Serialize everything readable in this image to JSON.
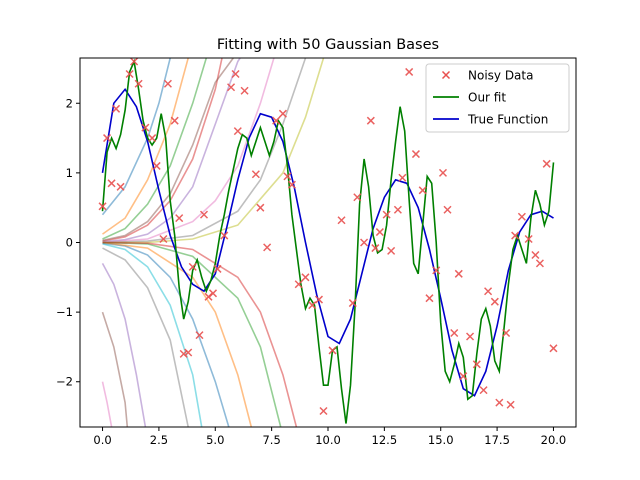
{
  "chart_data": {
    "type": "line",
    "title": "Fitting with 50 Gaussian Bases",
    "xlabel": "",
    "ylabel": "",
    "xlim": [
      -1.0,
      21.0
    ],
    "ylim": [
      -2.65,
      2.65
    ],
    "xticks": [
      0.0,
      2.5,
      5.0,
      7.5,
      10.0,
      12.5,
      15.0,
      17.5,
      20.0
    ],
    "xtick_labels": [
      "0.0",
      "2.5",
      "5.0",
      "7.5",
      "10.0",
      "12.5",
      "15.0",
      "17.5",
      "20.0"
    ],
    "yticks": [
      -2,
      -1,
      0,
      1,
      2
    ],
    "ytick_labels": [
      "−2",
      "−1",
      "0",
      "1",
      "2"
    ],
    "grid": false,
    "legend": {
      "position": "top-right",
      "entries": [
        {
          "label": "Noisy Data",
          "color": "#e8504f",
          "marker": "x"
        },
        {
          "label": "Our fit",
          "color": "#008000",
          "marker": "line"
        },
        {
          "label": "True Function",
          "color": "#0000cc",
          "marker": "line"
        }
      ]
    },
    "colors": {
      "noisy": "#e8504f",
      "fit": "#008000",
      "true": "#0000cc",
      "basis_palette": [
        "#1f77b4",
        "#ff7f0e",
        "#2ca02c",
        "#d62728",
        "#9467bd",
        "#8c564b",
        "#e377c2",
        "#7f7f7f",
        "#bcbd22",
        "#17becf"
      ]
    },
    "true_function": {
      "x": [
        0.0,
        0.5,
        1.0,
        1.5,
        2.0,
        2.5,
        3.0,
        3.5,
        4.0,
        4.5,
        5.0,
        5.5,
        6.0,
        6.5,
        7.0,
        7.5,
        8.0,
        8.5,
        9.0,
        9.5,
        10.0,
        10.5,
        11.0,
        11.5,
        12.0,
        12.5,
        13.0,
        13.5,
        14.0,
        14.5,
        15.0,
        15.5,
        16.0,
        16.5,
        17.0,
        17.5,
        18.0,
        18.5,
        19.0,
        19.5,
        20.0
      ],
      "y": [
        1.0,
        2.0,
        2.2,
        1.95,
        1.45,
        0.75,
        0.1,
        -0.35,
        -0.6,
        -0.7,
        -0.45,
        0.2,
        0.9,
        1.5,
        1.85,
        1.8,
        1.45,
        0.8,
        0.0,
        -0.75,
        -1.35,
        -1.45,
        -1.1,
        -0.45,
        0.2,
        0.65,
        0.9,
        0.85,
        0.5,
        -0.1,
        -0.8,
        -1.55,
        -2.1,
        -2.2,
        -1.85,
        -1.2,
        -0.4,
        0.15,
        0.4,
        0.45,
        0.35
      ]
    },
    "our_fit": {
      "x": [
        0.0,
        0.2,
        0.4,
        0.6,
        0.8,
        1.0,
        1.2,
        1.4,
        1.6,
        1.8,
        2.0,
        2.2,
        2.4,
        2.6,
        2.8,
        3.0,
        3.2,
        3.4,
        3.6,
        3.8,
        4.0,
        4.2,
        4.4,
        4.6,
        4.8,
        5.0,
        5.2,
        5.4,
        5.6,
        5.8,
        6.0,
        6.2,
        6.4,
        6.6,
        6.8,
        7.0,
        7.2,
        7.4,
        7.6,
        7.8,
        8.0,
        8.2,
        8.4,
        8.6,
        8.8,
        9.0,
        9.2,
        9.4,
        9.6,
        9.8,
        10.0,
        10.2,
        10.4,
        10.6,
        10.8,
        11.0,
        11.2,
        11.4,
        11.6,
        11.8,
        12.0,
        12.2,
        12.4,
        12.6,
        12.8,
        13.0,
        13.2,
        13.4,
        13.6,
        13.8,
        14.0,
        14.2,
        14.4,
        14.6,
        14.8,
        15.0,
        15.2,
        15.4,
        15.6,
        15.8,
        16.0,
        16.2,
        16.4,
        16.6,
        16.8,
        17.0,
        17.2,
        17.4,
        17.6,
        17.8,
        18.0,
        18.2,
        18.4,
        18.6,
        18.8,
        19.0,
        19.2,
        19.4,
        19.6,
        19.8,
        20.0
      ],
      "y": [
        0.45,
        1.3,
        1.5,
        1.35,
        1.55,
        1.9,
        2.45,
        2.6,
        2.2,
        1.75,
        1.5,
        1.4,
        1.5,
        1.85,
        1.5,
        0.6,
        0.1,
        -0.65,
        -1.1,
        -0.85,
        -0.4,
        -0.25,
        -0.5,
        -0.7,
        -0.55,
        -0.3,
        0.1,
        0.4,
        0.75,
        1.05,
        1.35,
        1.55,
        1.5,
        1.25,
        1.45,
        1.65,
        1.45,
        1.25,
        1.45,
        1.75,
        1.65,
        1.1,
        0.4,
        -0.1,
        -0.6,
        -0.95,
        -0.8,
        -0.9,
        -1.5,
        -2.05,
        -2.05,
        -1.55,
        -1.5,
        -2.1,
        -2.6,
        -2.05,
        -0.9,
        0.55,
        1.2,
        0.8,
        0.1,
        -0.15,
        -0.1,
        0.25,
        0.9,
        1.45,
        1.95,
        1.6,
        0.6,
        -0.3,
        -0.45,
        0.25,
        0.95,
        0.85,
        0.0,
        -1.15,
        -1.85,
        -2.0,
        -1.75,
        -1.45,
        -1.65,
        -2.25,
        -2.2,
        -1.6,
        -1.1,
        -0.95,
        -1.2,
        -1.7,
        -1.85,
        -1.25,
        -0.6,
        -0.1,
        0.1,
        -0.1,
        -0.3,
        0.35,
        0.75,
        0.55,
        0.25,
        0.45,
        1.15
      ]
    },
    "noisy_data": {
      "x": [
        0.0,
        0.2,
        0.4,
        0.6,
        0.8,
        1.2,
        1.4,
        1.6,
        1.9,
        2.2,
        2.4,
        2.7,
        2.9,
        3.2,
        3.4,
        3.6,
        3.8,
        4.0,
        4.3,
        4.5,
        4.7,
        4.9,
        5.1,
        5.4,
        5.7,
        5.9,
        6.0,
        6.3,
        6.8,
        7.0,
        7.3,
        7.7,
        8.0,
        8.2,
        8.4,
        8.7,
        9.0,
        9.3,
        9.6,
        9.8,
        10.2,
        10.6,
        11.1,
        11.3,
        11.6,
        11.9,
        12.1,
        12.3,
        12.6,
        12.8,
        13.1,
        13.3,
        13.6,
        13.9,
        14.2,
        14.5,
        14.8,
        15.1,
        15.3,
        15.6,
        15.8,
        16.0,
        16.3,
        16.6,
        16.9,
        17.1,
        17.4,
        17.6,
        17.9,
        18.1,
        18.3,
        18.6,
        18.9,
        19.2,
        19.4,
        19.7,
        20.0
      ],
      "y": [
        0.52,
        1.5,
        0.85,
        1.92,
        0.8,
        2.42,
        2.6,
        2.28,
        1.65,
        1.5,
        1.1,
        0.05,
        2.28,
        1.75,
        0.35,
        -1.6,
        -1.58,
        -0.35,
        -1.33,
        0.4,
        -0.78,
        -0.73,
        -0.38,
        0.1,
        2.23,
        2.42,
        1.6,
        2.18,
        0.98,
        0.5,
        -0.07,
        1.75,
        1.85,
        0.95,
        0.83,
        -0.6,
        -0.5,
        -0.9,
        -0.82,
        -2.42,
        -1.55,
        0.32,
        -0.87,
        0.65,
        0.0,
        1.75,
        -0.08,
        0.15,
        0.4,
        -0.12,
        0.47,
        0.93,
        2.45,
        1.27,
        0.75,
        -0.8,
        -0.4,
        1.0,
        0.47,
        -1.3,
        -0.45,
        -1.92,
        -1.35,
        -1.75,
        -2.12,
        -0.7,
        -0.85,
        -2.3,
        -1.3,
        -2.33,
        0.1,
        0.37,
        0.05,
        -0.18,
        -0.3,
        1.13,
        -1.52
      ]
    },
    "gaussian_bases": {
      "count": 50,
      "visible_basis_curves": [
        {
          "x": [
            0,
            1,
            2,
            2.5,
            3.0
          ],
          "y": [
            0.4,
            0.8,
            1.5,
            2.0,
            2.65
          ]
        },
        {
          "x": [
            0,
            1,
            2,
            3,
            3.8
          ],
          "y": [
            0.12,
            0.35,
            0.9,
            1.7,
            2.65
          ]
        },
        {
          "x": [
            0,
            1,
            2,
            3,
            4,
            4.6
          ],
          "y": [
            0.05,
            0.2,
            0.55,
            1.1,
            2.0,
            2.65
          ]
        },
        {
          "x": [
            0,
            1,
            2,
            3,
            4,
            5,
            5.3
          ],
          "y": [
            0.02,
            0.08,
            0.25,
            0.6,
            1.2,
            2.2,
            2.65
          ]
        },
        {
          "x": [
            0,
            1,
            2,
            3,
            4,
            5,
            6,
            6.1
          ],
          "y": [
            0.01,
            0.04,
            0.12,
            0.35,
            0.8,
            1.7,
            2.6,
            2.65
          ]
        },
        {
          "x": [
            0,
            1,
            2,
            3,
            4,
            5,
            5.8
          ],
          "y": [
            0.03,
            0.1,
            0.3,
            0.7,
            1.4,
            2.3,
            2.65
          ]
        },
        {
          "x": [
            0,
            2,
            4,
            5,
            6,
            7,
            7.6
          ],
          "y": [
            0.0,
            0.05,
            0.3,
            0.6,
            1.1,
            2.0,
            2.65
          ]
        },
        {
          "x": [
            0,
            2,
            4,
            6,
            7,
            8,
            9.0
          ],
          "y": [
            0.0,
            0.02,
            0.1,
            0.45,
            0.9,
            1.7,
            2.65
          ]
        },
        {
          "x": [
            0,
            2,
            4,
            6,
            8,
            9,
            9.8
          ],
          "y": [
            0.0,
            0.0,
            0.05,
            0.25,
            1.0,
            1.8,
            2.65
          ]
        },
        {
          "x": [
            0,
            1,
            2,
            3,
            4,
            4.4
          ],
          "y": [
            -0.02,
            -0.1,
            -0.35,
            -0.9,
            -1.9,
            -2.65
          ]
        },
        {
          "x": [
            0,
            1,
            2,
            3,
            4,
            5,
            5.6
          ],
          "y": [
            -0.01,
            -0.05,
            -0.18,
            -0.5,
            -1.1,
            -2.0,
            -2.65
          ]
        },
        {
          "x": [
            0,
            2,
            4,
            5,
            6,
            6.6
          ],
          "y": [
            0.0,
            -0.08,
            -0.5,
            -1.0,
            -1.9,
            -2.65
          ]
        },
        {
          "x": [
            0,
            2,
            4,
            6,
            7,
            7.9
          ],
          "y": [
            0.0,
            -0.02,
            -0.2,
            -0.8,
            -1.5,
            -2.65
          ]
        },
        {
          "x": [
            0,
            2,
            4,
            6,
            7,
            8,
            8.6
          ],
          "y": [
            0.0,
            -0.01,
            -0.1,
            -0.5,
            -1.0,
            -1.9,
            -2.65
          ]
        },
        {
          "x": [
            0,
            0.5,
            1.0,
            1.5,
            1.9
          ],
          "y": [
            -0.3,
            -0.6,
            -1.1,
            -1.9,
            -2.65
          ]
        },
        {
          "x": [
            0,
            0.5,
            1.0,
            1.1
          ],
          "y": [
            -1.0,
            -1.5,
            -2.3,
            -2.65
          ]
        },
        {
          "x": [
            0,
            0.2,
            0.4
          ],
          "y": [
            -2.0,
            -2.3,
            -2.65
          ]
        },
        {
          "x": [
            0,
            1,
            2,
            3,
            3.8
          ],
          "y": [
            -0.08,
            -0.25,
            -0.65,
            -1.4,
            -2.65
          ]
        }
      ]
    }
  }
}
